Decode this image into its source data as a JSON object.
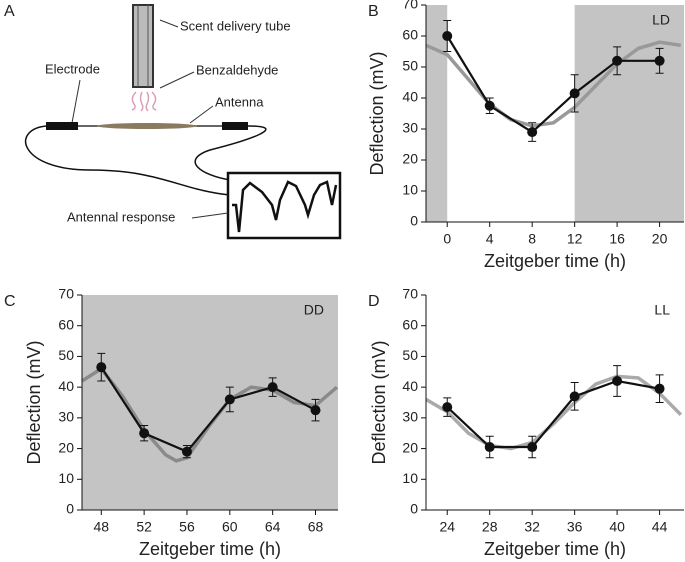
{
  "diagram": {
    "panel": "A",
    "tube": "Scent delivery tube",
    "odor": "Benzaldehyde",
    "electrode": "Electrode",
    "antenna": "Antenna",
    "response": "Antennal response"
  },
  "chart_data": [
    {
      "type": "line",
      "panel": "B",
      "annotation": "LD",
      "x_label": "Zeitgeber time (h)",
      "y_label": "Deflection (mV)",
      "x": [
        0,
        4,
        8,
        12,
        16,
        20
      ],
      "series": [
        {
          "color": "#111111",
          "values": [
            60,
            37.5,
            29,
            41.5,
            52,
            52
          ],
          "errors": [
            5,
            2.5,
            3,
            6,
            4.5,
            4
          ]
        }
      ],
      "fit": {
        "color": "#999999",
        "x": [
          -2,
          0,
          2,
          4,
          6,
          8,
          10,
          12,
          14,
          16,
          18,
          20,
          22
        ],
        "values": [
          57,
          54,
          46,
          38,
          33,
          31,
          32,
          37,
          44,
          51,
          56,
          58,
          57
        ]
      },
      "shading": [
        [
          -2,
          0
        ],
        [
          12,
          22.3
        ]
      ],
      "shade_color": "#c4c4c4",
      "xlim": [
        -2,
        22.3
      ],
      "xticks": [
        0,
        4,
        8,
        12,
        16,
        20
      ],
      "ylim": [
        0,
        70
      ],
      "yticks": [
        0,
        10,
        20,
        30,
        40,
        50,
        60,
        70
      ]
    },
    {
      "type": "line",
      "panel": "C",
      "annotation": "DD",
      "x_label": "Zeitgeber time (h)",
      "y_label": "Deflection (mV)",
      "x": [
        48,
        52,
        56,
        60,
        64,
        68
      ],
      "series": [
        {
          "color": "#111111",
          "values": [
            46.5,
            25,
            19,
            36,
            40,
            32.5
          ],
          "errors": [
            4.5,
            2.5,
            2,
            4,
            3,
            3.5
          ]
        }
      ],
      "fit": {
        "color": "#8a8a8a",
        "x": [
          46.2,
          48,
          50,
          52,
          54,
          55,
          56,
          58,
          60,
          62,
          64,
          66,
          68,
          70
        ],
        "values": [
          42,
          46,
          37,
          26,
          18,
          16,
          17,
          27,
          36,
          40,
          39,
          35,
          34,
          40
        ]
      },
      "shading": [
        [
          46.2,
          70.1
        ]
      ],
      "shade_color": "#c4c4c4",
      "xlim": [
        46.2,
        70.1
      ],
      "xticks": [
        48,
        52,
        56,
        60,
        64,
        68
      ],
      "ylim": [
        0,
        70
      ],
      "yticks": [
        0,
        10,
        20,
        30,
        40,
        50,
        60,
        70
      ]
    },
    {
      "type": "line",
      "panel": "D",
      "annotation": "LL",
      "x_label": "Zeitgeber time (h)",
      "y_label": "Deflection (mV)",
      "x": [
        24,
        28,
        32,
        36,
        40,
        44
      ],
      "series": [
        {
          "color": "#111111",
          "values": [
            33.5,
            20.5,
            20.5,
            37,
            42,
            39.5
          ],
          "errors": [
            3,
            3.5,
            3.5,
            4.5,
            5,
            4.5
          ]
        }
      ],
      "fit": {
        "color": "#aaaaaa",
        "x": [
          22,
          24,
          26,
          28,
          30,
          32,
          34,
          36,
          38,
          40,
          42,
          44,
          46
        ],
        "values": [
          36,
          32,
          25,
          21,
          20,
          22,
          28,
          35,
          41,
          43.5,
          43,
          38,
          31
        ]
      },
      "shading": [],
      "shade_color": "#c4c4c4",
      "xlim": [
        22,
        46.3
      ],
      "xticks": [
        24,
        28,
        32,
        36,
        40,
        44
      ],
      "ylim": [
        0,
        70
      ],
      "yticks": [
        0,
        10,
        20,
        30,
        40,
        50,
        60,
        70
      ]
    }
  ]
}
